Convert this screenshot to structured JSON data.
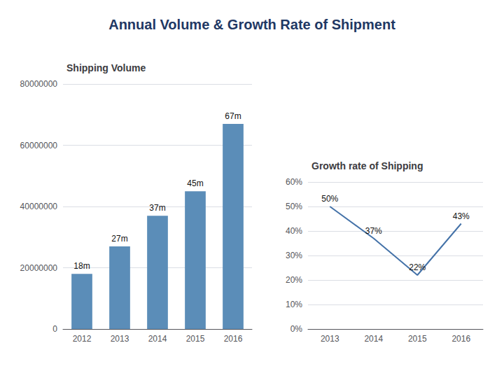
{
  "title": "Annual Volume & Growth Rate of Shipment",
  "chart_data": [
    {
      "type": "bar",
      "title": "Shipping Volume",
      "categories": [
        "2012",
        "2013",
        "2014",
        "2015",
        "2016"
      ],
      "values": [
        18000000,
        27000000,
        37000000,
        45000000,
        67000000
      ],
      "value_labels": [
        "18m",
        "27m",
        "37m",
        "45m",
        "67m"
      ],
      "data_labels": true,
      "color": "#5B8DB8",
      "ylim": [
        0,
        80000000
      ],
      "yticks": [
        0,
        20000000,
        40000000,
        60000000,
        80000000
      ],
      "grid": true
    },
    {
      "type": "line",
      "title": "Growth rate of Shipping",
      "categories": [
        "2013",
        "2014",
        "2015",
        "2016"
      ],
      "values": [
        0.5,
        0.37,
        0.22,
        0.43
      ],
      "value_labels": [
        "50%",
        "37%",
        "22%",
        "43%"
      ],
      "data_labels": true,
      "color": "#4472A8",
      "ylim": [
        0,
        0.6
      ],
      "yticks": [
        {
          "value": 0.0,
          "label": "0%"
        },
        {
          "value": 0.1,
          "label": "10%"
        },
        {
          "value": 0.2,
          "label": "20%"
        },
        {
          "value": 0.3,
          "label": "30%"
        },
        {
          "value": 0.4,
          "label": "40%"
        },
        {
          "value": 0.5,
          "label": "50%"
        },
        {
          "value": 0.6,
          "label": "60%"
        }
      ],
      "grid": true
    }
  ]
}
